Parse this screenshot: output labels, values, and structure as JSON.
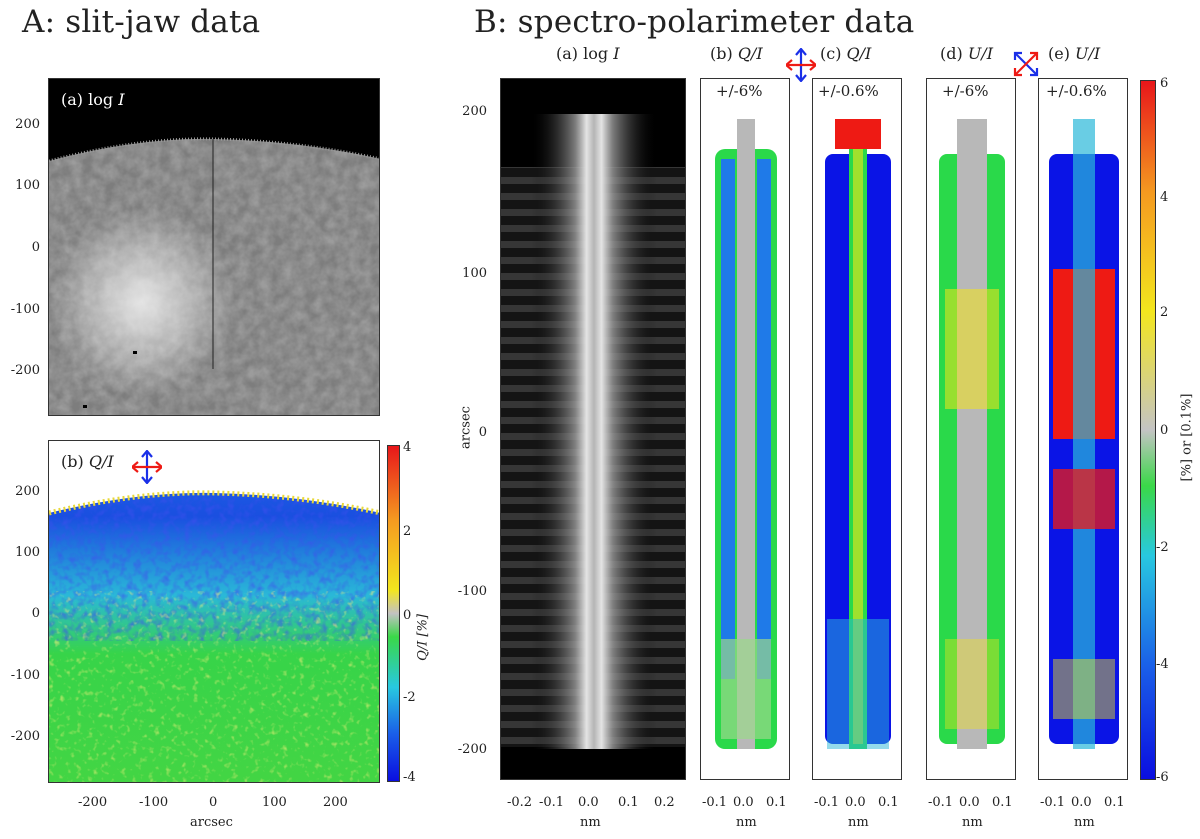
{
  "titles": {
    "a": "A: slit-jaw data",
    "b": "B: spectro-polarimeter data"
  },
  "slitjaw": {
    "panel_a": {
      "label": "(a) log ",
      "label_var": "I"
    },
    "panel_b": {
      "label": "(b) ",
      "label_var": "Q/I"
    },
    "y_ticks": [
      "200",
      "100",
      "0",
      "-100",
      "-200"
    ],
    "x_ticks": [
      "-200",
      "-100",
      "0",
      "100",
      "200"
    ],
    "x_label": "arcsec",
    "colorbar": {
      "ticks": [
        "4",
        "2",
        "0",
        "-2",
        "-4"
      ],
      "label": "Q/I [%]"
    }
  },
  "spectro": {
    "y_label": "arcsec",
    "y_ticks": [
      "200",
      "100",
      "0",
      "-100",
      "-200"
    ],
    "x_label": "nm",
    "panels": [
      {
        "id": "a",
        "title": "(a) log ",
        "title_var": "I",
        "range": "",
        "ticks": [
          "-0.2",
          "-0.1",
          "0.0",
          "0.1",
          "0.2"
        ]
      },
      {
        "id": "b",
        "title": "(b) ",
        "title_var": "Q/I",
        "range": "+/-6%",
        "ticks": [
          "-0.1",
          "0.0",
          "0.1"
        ]
      },
      {
        "id": "c",
        "title": "(c) ",
        "title_var": "Q/I",
        "range": "+/-0.6%",
        "ticks": [
          "-0.1",
          "0.0",
          "0.1"
        ]
      },
      {
        "id": "d",
        "title": "(d) ",
        "title_var": "U/I",
        "range": "+/-6%",
        "ticks": [
          "-0.1",
          "0.0",
          "0.1"
        ]
      },
      {
        "id": "e",
        "title": "(e) ",
        "title_var": "U/I",
        "range": "+/-0.6%",
        "ticks": [
          "-0.1",
          "0.0",
          "0.1"
        ]
      }
    ],
    "colorbar": {
      "ticks": [
        "6",
        "4",
        "2",
        "0",
        "-2",
        "-4",
        "-6"
      ],
      "label": "[%] or [0.1%]"
    }
  },
  "colors": {
    "blue": "#0a14e6",
    "cyan": "#23c8e6",
    "green": "#2ad94a",
    "grey": "#b8b8b8",
    "yellow": "#f2e41a",
    "orange": "#f59a1c",
    "red": "#ee1a14"
  }
}
